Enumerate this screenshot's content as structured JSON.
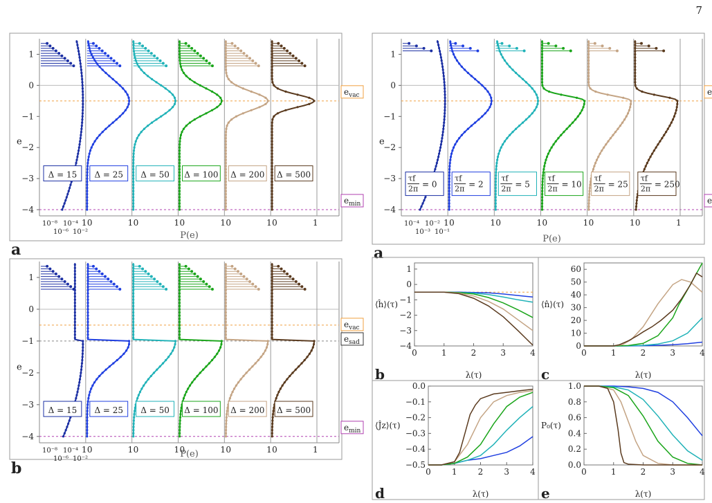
{
  "page": {
    "number": "7"
  },
  "colors": {
    "c1": "#1b2fa3",
    "c2": "#1f3fe0",
    "c3": "#20b2b8",
    "c4": "#1aa51a",
    "c5": "#c4a484",
    "c6": "#5a3a1e",
    "vac_line": "#f0a040",
    "min_line": "#b040b0",
    "sad_line": "#888888"
  },
  "chart_data": [
    {
      "id": "left-a",
      "type": "line",
      "panel_label": "a",
      "ylabel": "e",
      "xlabel": "P(e)",
      "ylim": [
        -4.2,
        1.5
      ],
      "yticks": [
        "1",
        "0",
        "-1",
        "-2",
        "-3",
        "-4"
      ],
      "ref_lines": [
        {
          "label": "e_vac",
          "y": -0.5
        },
        {
          "label": "e_min",
          "y": -4.0
        }
      ],
      "column_ticks": [
        [
          "10⁻⁸",
          "10⁻⁴",
          "1"
        ],
        [
          "0",
          "1"
        ],
        [
          "0",
          "1"
        ],
        [
          "0",
          "1"
        ],
        [
          "0",
          "1"
        ],
        [
          "0",
          "1"
        ]
      ],
      "column_ticks_sub": [
        "10⁻⁶",
        "10⁻²"
      ],
      "series": [
        {
          "name": "Δ = 15",
          "color": "c1"
        },
        {
          "name": "Δ = 25",
          "color": "c2"
        },
        {
          "name": "Δ = 50",
          "color": "c3"
        },
        {
          "name": "Δ = 100",
          "color": "c4"
        },
        {
          "name": "Δ = 200",
          "color": "c5"
        },
        {
          "name": "Δ = 500",
          "color": "c6"
        }
      ]
    },
    {
      "id": "left-b",
      "type": "line",
      "panel_label": "b",
      "ylabel": "e",
      "xlabel": "P(e)",
      "ylim": [
        -4.2,
        1.5
      ],
      "yticks": [
        "1",
        "0",
        "-1",
        "-2",
        "-3",
        "-4"
      ],
      "ref_lines": [
        {
          "label": "e_vac",
          "y": -0.5
        },
        {
          "label": "e_sad",
          "y": -1.0
        },
        {
          "label": "e_min",
          "y": -4.0
        }
      ],
      "column_ticks": [
        [
          "10⁻⁸",
          "10⁻⁴",
          "1"
        ],
        [
          "0",
          "1"
        ],
        [
          "0",
          "1"
        ],
        [
          "0",
          "1"
        ],
        [
          "0",
          "1"
        ],
        [
          "0",
          "1"
        ]
      ],
      "column_ticks_sub": [
        "10⁻⁶",
        "10⁻²"
      ],
      "series": [
        {
          "name": "Δ = 15",
          "color": "c1"
        },
        {
          "name": "Δ = 25",
          "color": "c2"
        },
        {
          "name": "Δ = 50",
          "color": "c3"
        },
        {
          "name": "Δ = 100",
          "color": "c4"
        },
        {
          "name": "Δ = 200",
          "color": "c5"
        },
        {
          "name": "Δ = 500",
          "color": "c6"
        }
      ]
    },
    {
      "id": "right-a",
      "type": "line",
      "panel_label": "a",
      "ylabel": "e",
      "xlabel": "P(e)",
      "ylim": [
        -4.2,
        1.5
      ],
      "yticks": [
        "1",
        "0",
        "-1",
        "-2",
        "-3",
        "-4"
      ],
      "ref_lines": [
        {
          "label": "e_vac",
          "y": -0.5
        },
        {
          "label": "e_min",
          "y": -4.0
        }
      ],
      "column_ticks": [
        [
          "10⁻⁴",
          "10⁻²",
          "1"
        ],
        [
          "0",
          "1"
        ],
        [
          "0",
          "1"
        ],
        [
          "0",
          "1"
        ],
        [
          "0",
          "1"
        ],
        [
          "0",
          "1"
        ]
      ],
      "column_ticks_sub": [
        "10⁻³",
        "10⁻¹"
      ],
      "series": [
        {
          "name": "τ_f/2π = 0",
          "color": "c1"
        },
        {
          "name": "τ_f/2π = 2",
          "color": "c2"
        },
        {
          "name": "τ_f/2π = 5",
          "color": "c3"
        },
        {
          "name": "τ_f/2π = 10",
          "color": "c4"
        },
        {
          "name": "τ_f/2π = 25",
          "color": "c5"
        },
        {
          "name": "τ_f/2π = 250",
          "color": "c6"
        }
      ]
    },
    {
      "id": "right-b",
      "type": "line",
      "panel_label": "b",
      "ylabel": "⟨ĥ⟩(τ)",
      "xlabel": "λ(τ)",
      "xlim": [
        0,
        4
      ],
      "ylim": [
        -4,
        1.4
      ],
      "xticks": [
        0,
        1,
        2,
        3,
        4
      ],
      "yticks": [
        1,
        0,
        -1,
        -2,
        -3,
        -4
      ],
      "ref_y": -0.5,
      "series": [
        {
          "color": "c2",
          "x": [
            0,
            0.5,
            1,
            1.5,
            2,
            2.5,
            3,
            3.5,
            4
          ],
          "y": [
            -0.5,
            -0.5,
            -0.5,
            -0.5,
            -0.52,
            -0.55,
            -0.62,
            -0.72,
            -0.82
          ]
        },
        {
          "color": "c3",
          "x": [
            0,
            0.5,
            1,
            1.5,
            2,
            2.5,
            3,
            3.5,
            4
          ],
          "y": [
            -0.5,
            -0.5,
            -0.5,
            -0.52,
            -0.56,
            -0.66,
            -0.82,
            -1.0,
            -1.15
          ]
        },
        {
          "color": "c4",
          "x": [
            0,
            0.5,
            1,
            1.5,
            2,
            2.5,
            3,
            3.5,
            4
          ],
          "y": [
            -0.5,
            -0.5,
            -0.5,
            -0.53,
            -0.62,
            -0.85,
            -1.2,
            -1.65,
            -2.15
          ]
        },
        {
          "color": "c5",
          "x": [
            0,
            0.5,
            1,
            1.5,
            2,
            2.5,
            3,
            3.5,
            4
          ],
          "y": [
            -0.5,
            -0.5,
            -0.5,
            -0.56,
            -0.75,
            -1.1,
            -1.6,
            -2.3,
            -3.0
          ]
        },
        {
          "color": "c6",
          "x": [
            0,
            0.5,
            1,
            1.5,
            2,
            2.5,
            3,
            3.5,
            4
          ],
          "y": [
            -0.5,
            -0.5,
            -0.5,
            -0.6,
            -0.9,
            -1.4,
            -2.1,
            -3.0,
            -3.95
          ]
        }
      ]
    },
    {
      "id": "right-c",
      "type": "line",
      "panel_label": "c",
      "ylabel": "⟨n̂⟩(τ)",
      "xlabel": "λ(τ)",
      "xlim": [
        0,
        4
      ],
      "ylim": [
        0,
        65
      ],
      "xticks": [
        0,
        1,
        2,
        3,
        4
      ],
      "yticks": [
        0,
        10,
        20,
        30,
        40,
        50,
        60
      ],
      "series": [
        {
          "color": "c2",
          "x": [
            0,
            1,
            1.5,
            2,
            2.5,
            3,
            3.5,
            4
          ],
          "y": [
            0,
            0,
            0,
            0.2,
            0.5,
            1.0,
            1.8,
            3.0
          ]
        },
        {
          "color": "c3",
          "x": [
            0,
            1,
            1.5,
            2,
            2.5,
            3,
            3.5,
            4
          ],
          "y": [
            0,
            0,
            0.1,
            0.5,
            1.5,
            4,
            10,
            22
          ]
        },
        {
          "color": "c4",
          "x": [
            0,
            1,
            1.5,
            2,
            2.5,
            3,
            3.2,
            3.5,
            4
          ],
          "y": [
            0,
            0,
            0.3,
            2,
            8,
            22,
            32,
            44,
            65
          ]
        },
        {
          "color": "c5",
          "x": [
            0,
            1,
            1.3,
            1.6,
            2,
            2.5,
            3,
            3.3,
            3.6,
            4
          ],
          "y": [
            0,
            0,
            1,
            5,
            15,
            33,
            48,
            52,
            50,
            42
          ]
        },
        {
          "color": "c6",
          "x": [
            0,
            1,
            1.2,
            1.5,
            1.8,
            2,
            2.3,
            2.6,
            3,
            3.3,
            3.6,
            3.8,
            4
          ],
          "y": [
            0,
            0,
            1,
            4,
            8,
            11,
            15,
            20,
            28,
            37,
            48,
            57,
            54
          ]
        }
      ]
    },
    {
      "id": "right-d",
      "type": "line",
      "panel_label": "d",
      "ylabel": "⟨Ĵz⟩(τ)",
      "xlabel": "λ(τ)",
      "xlim": [
        0,
        4
      ],
      "ylim": [
        -0.5,
        0.0
      ],
      "xticks": [
        0,
        1,
        2,
        3,
        4
      ],
      "yticks": [
        "0.0",
        "-0.1",
        "-0.2",
        "-0.3",
        "-0.4",
        "-0.5"
      ],
      "series": [
        {
          "color": "c2",
          "x": [
            0,
            0.5,
            1,
            1.5,
            2,
            2.5,
            3,
            3.5,
            4
          ],
          "y": [
            -0.5,
            -0.5,
            -0.49,
            -0.47,
            -0.46,
            -0.44,
            -0.42,
            -0.38,
            -0.32
          ]
        },
        {
          "color": "c3",
          "x": [
            0,
            0.5,
            1,
            1.5,
            2,
            2.5,
            3,
            3.5,
            4
          ],
          "y": [
            -0.5,
            -0.5,
            -0.49,
            -0.47,
            -0.44,
            -0.37,
            -0.28,
            -0.2,
            -0.13
          ]
        },
        {
          "color": "c4",
          "x": [
            0,
            0.5,
            1,
            1.5,
            2,
            2.5,
            3,
            3.5,
            4
          ],
          "y": [
            -0.5,
            -0.5,
            -0.49,
            -0.45,
            -0.37,
            -0.24,
            -0.13,
            -0.07,
            -0.04
          ]
        },
        {
          "color": "c5",
          "x": [
            0,
            0.5,
            1,
            1.5,
            2,
            2.5,
            3,
            3.5,
            4
          ],
          "y": [
            -0.5,
            -0.5,
            -0.48,
            -0.37,
            -0.2,
            -0.1,
            -0.06,
            -0.04,
            -0.03
          ]
        },
        {
          "color": "c6",
          "x": [
            0,
            0.5,
            1,
            1.2,
            1.4,
            1.6,
            1.8,
            2,
            2.5,
            3,
            3.5,
            4
          ],
          "y": [
            -0.5,
            -0.5,
            -0.48,
            -0.42,
            -0.3,
            -0.18,
            -0.12,
            -0.08,
            -0.05,
            -0.04,
            -0.03,
            -0.02
          ]
        }
      ]
    },
    {
      "id": "right-e",
      "type": "line",
      "panel_label": "e",
      "ylabel": "P₀(τ)",
      "xlabel": "λ(τ)",
      "xlim": [
        0,
        4
      ],
      "ylim": [
        0,
        1.0
      ],
      "xticks": [
        0,
        1,
        2,
        3,
        4
      ],
      "yticks": [
        "1.0",
        "0.8",
        "0.6",
        "0.4",
        "0.2",
        "0.0"
      ],
      "series": [
        {
          "color": "c2",
          "x": [
            0,
            0.5,
            1,
            1.5,
            2,
            2.5,
            3,
            3.5,
            4
          ],
          "y": [
            1,
            1,
            1,
            0.99,
            0.97,
            0.92,
            0.8,
            0.6,
            0.37
          ]
        },
        {
          "color": "c3",
          "x": [
            0,
            0.5,
            1,
            1.5,
            2,
            2.5,
            3,
            3.5,
            4
          ],
          "y": [
            1,
            1,
            0.99,
            0.95,
            0.83,
            0.62,
            0.38,
            0.18,
            0.06
          ]
        },
        {
          "color": "c4",
          "x": [
            0,
            0.5,
            1,
            1.5,
            2,
            2.5,
            3,
            3.5,
            4
          ],
          "y": [
            1,
            1,
            0.98,
            0.88,
            0.62,
            0.3,
            0.1,
            0.02,
            0.0
          ]
        },
        {
          "color": "c5",
          "x": [
            0,
            0.5,
            1,
            1.25,
            1.5,
            1.75,
            2,
            2.5,
            3,
            4
          ],
          "y": [
            1,
            1,
            0.95,
            0.8,
            0.55,
            0.3,
            0.12,
            0.02,
            0,
            0
          ]
        },
        {
          "color": "c6",
          "x": [
            0,
            0.5,
            0.8,
            1,
            1.15,
            1.25,
            1.35,
            1.5,
            2,
            4
          ],
          "y": [
            1,
            1,
            0.97,
            0.8,
            0.45,
            0.15,
            0.03,
            0.01,
            0,
            0
          ]
        }
      ]
    }
  ]
}
